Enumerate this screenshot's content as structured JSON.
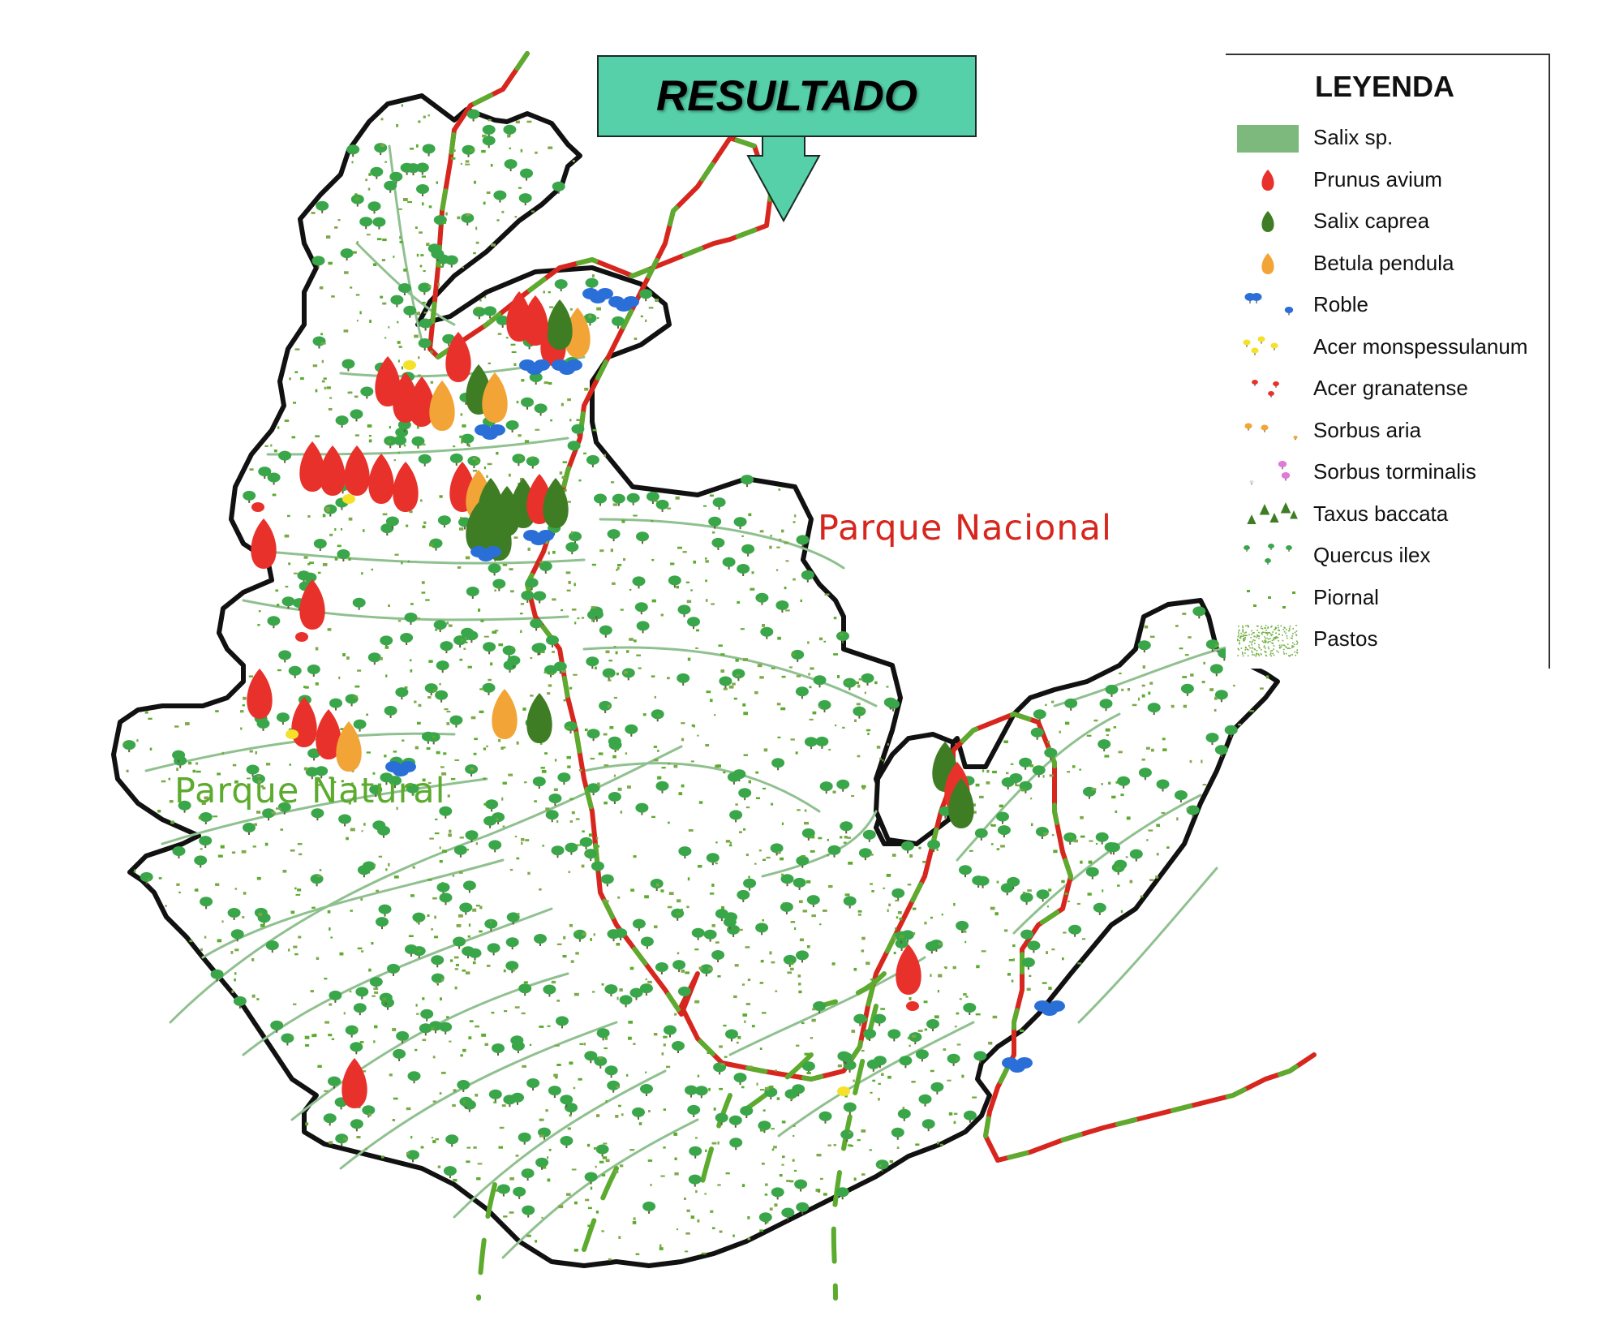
{
  "result_label": "RESULTADO",
  "labels": {
    "parque_nacional": "Parque Nacional",
    "parque_natural": "Parque Natural"
  },
  "legend": {
    "title": "LEYENDA",
    "items": [
      {
        "label": "Salix sp.",
        "symbol": "salix-sp-band",
        "color": "#7db87d"
      },
      {
        "label": "Prunus avium",
        "symbol": "prunus-avium-tree",
        "color": "#e8312a"
      },
      {
        "label": "Salix caprea",
        "symbol": "salix-caprea-tree",
        "color": "#3f7d24"
      },
      {
        "label": "Betula pendula",
        "symbol": "betula-pendula-tree",
        "color": "#f2a536"
      },
      {
        "label": "Roble",
        "symbol": "roble-tree",
        "color": "#2a6fd8"
      },
      {
        "label": "Acer monspessulanum",
        "symbol": "acer-monspessulanum-tree",
        "color": "#f5e12a"
      },
      {
        "label": "Acer granatense",
        "symbol": "acer-granatense-tree",
        "color": "#e8312a"
      },
      {
        "label": "Sorbus aria",
        "symbol": "sorbus-aria-tree",
        "color": "#f2a536"
      },
      {
        "label": "Sorbus torminalis",
        "symbol": "sorbus-torminalis-tree",
        "color": "#e07ad6"
      },
      {
        "label": "Taxus baccata",
        "symbol": "taxus-baccata-tree",
        "color": "#3f7d24"
      },
      {
        "label": "Quercus ilex",
        "symbol": "quercus-ilex-tree",
        "color": "#3aa64a"
      },
      {
        "label": "Piornal",
        "symbol": "piornal-shrub",
        "color": "#5cab2e"
      },
      {
        "label": "Pastos",
        "symbol": "pastos-texture",
        "color": "#6fae3e"
      }
    ]
  },
  "colors": {
    "boundary": "#111111",
    "park_boundary_red": "#d7261e",
    "park_boundary_green": "#5cab2e",
    "streams": "#8fc08f",
    "quercus_ilex": "#3aa64a",
    "result_box": "#55d0a9"
  }
}
